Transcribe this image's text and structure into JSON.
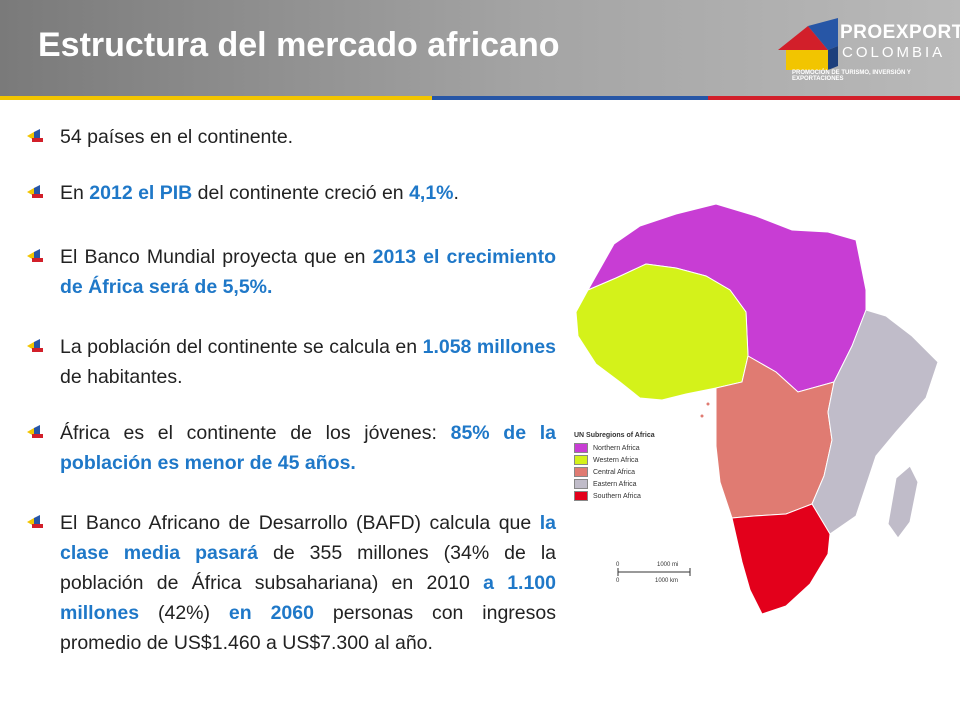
{
  "header": {
    "title": "Estructura del mercado africano",
    "colors": {
      "stripe_yellow": "#f2c500",
      "stripe_blue": "#2756a6",
      "stripe_red": "#d21f2a"
    }
  },
  "logo": {
    "name": "PROEXPORT",
    "sub": "COLOMBIA",
    "tagline": "PROMOCIÓN DE TURISMO, INVERSIÓN Y EXPORTACIONES"
  },
  "bullets": [
    {
      "parts": [
        {
          "t": "54 países en el continente."
        }
      ]
    },
    {
      "parts": [
        {
          "t": "En "
        },
        {
          "t": "2012 el PIB",
          "hl": true
        },
        {
          "t": " del continente creció en "
        },
        {
          "t": "4,1%",
          "hl": true
        },
        {
          "t": "."
        }
      ]
    },
    {
      "parts": [
        {
          "t": "El Banco Mundial proyecta que en "
        },
        {
          "t": "2013 el crecimiento de África será de 5,5%.",
          "hl": true
        }
      ]
    },
    {
      "parts": [
        {
          "t": "La población del continente se calcula en "
        },
        {
          "t": "1.058 millones",
          "hl": true
        },
        {
          "t": " de habitantes."
        }
      ]
    },
    {
      "parts": [
        {
          "t": "África es el continente de los jóvenes: "
        },
        {
          "t": "85% de la población es menor de 45 años.",
          "hl": true
        }
      ]
    },
    {
      "parts": [
        {
          "t": "El Banco Africano de Desarrollo (BAFD) calcula que "
        },
        {
          "t": "la clase media pasará",
          "hl": true
        },
        {
          "t": " de 355 millones (34% de la población de África subsahariana) en 2010 "
        },
        {
          "t": "a 1.100 millones",
          "hl": true
        },
        {
          "t": " (42%) "
        },
        {
          "t": "en 2060",
          "hl": true
        },
        {
          "t": " personas con ingresos promedio de US$1.460 a US$7.300 al año."
        }
      ]
    }
  ],
  "map": {
    "legend_title": "UN Subregions of Africa",
    "legend": [
      {
        "label": "Northern Africa",
        "color": "#c83dd4"
      },
      {
        "label": "Western Africa",
        "color": "#d4f21a"
      },
      {
        "label": "Central Africa",
        "color": "#e07b72"
      },
      {
        "label": "Eastern Africa",
        "color": "#c0bcc9"
      },
      {
        "label": "Southern Africa",
        "color": "#e3001b"
      }
    ],
    "scale": {
      "zero": "0",
      "miles": "1000 mi",
      "km": "1000 km"
    }
  }
}
